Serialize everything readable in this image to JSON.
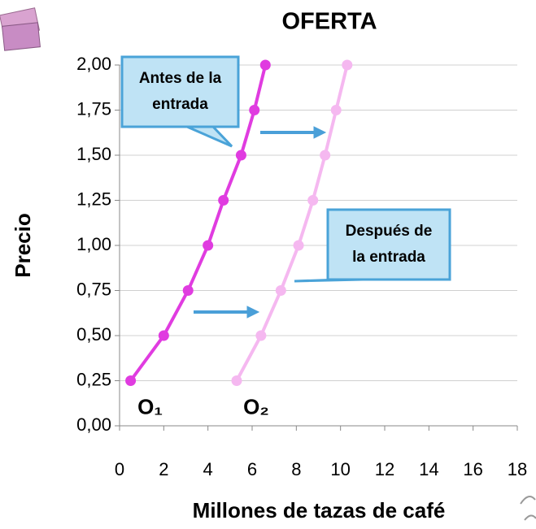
{
  "chart_data": {
    "type": "line",
    "title": "OFERTA",
    "x_label": "Millones de tazas de café",
    "y_label": "Precio",
    "xlim": [
      0,
      18
    ],
    "xticks": [
      0,
      2,
      4,
      6,
      8,
      10,
      12,
      14,
      16,
      18
    ],
    "ylim": [
      0,
      2
    ],
    "yticks": [
      {
        "value": 0,
        "label": "0,00"
      },
      {
        "value": 0.25,
        "label": "0,25"
      },
      {
        "value": 0.5,
        "label": "0,50"
      },
      {
        "value": 0.75,
        "label": "0,75"
      },
      {
        "value": 1,
        "label": "1,00"
      },
      {
        "value": 1.25,
        "label": "1,25"
      },
      {
        "value": 1.5,
        "label": "1,50"
      },
      {
        "value": 1.75,
        "label": "1,75"
      },
      {
        "value": 2,
        "label": "2,00"
      }
    ],
    "grid": true,
    "series": [
      {
        "name": "O₁",
        "color": "#e03ce0",
        "x": [
          0.5,
          2,
          3.1,
          4,
          4.7,
          5.5,
          6.1,
          6.6
        ],
        "values": [
          0.25,
          0.5,
          0.75,
          1,
          1.25,
          1.5,
          1.75,
          2
        ]
      },
      {
        "name": "O₂",
        "color": "#f5b8f0",
        "x": [
          5.3,
          6.4,
          7.3,
          8.1,
          8.75,
          9.3,
          9.8,
          10.3
        ],
        "values": [
          0.25,
          0.5,
          0.75,
          1,
          1.25,
          1.5,
          1.75,
          2
        ]
      }
    ],
    "annotations": [
      [
        "Antes de la",
        "entrada"
      ],
      [
        "Después de",
        "la entrada"
      ]
    ]
  }
}
